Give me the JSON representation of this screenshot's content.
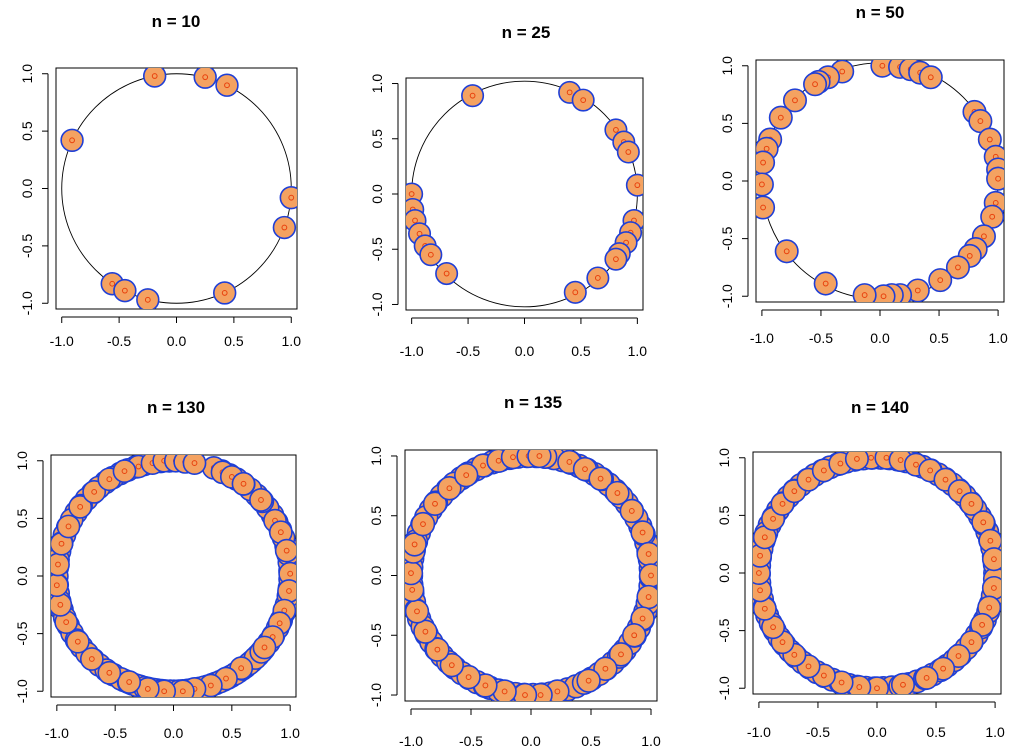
{
  "colors": {
    "point_fill": "#f4a261",
    "point_border": "#1f3fd6",
    "point_center": "#e8420e",
    "background": "#ffffff"
  },
  "chart_data": [
    {
      "type": "scatter",
      "title": "n =  10",
      "xlim": [
        -1.05,
        1.05
      ],
      "ylim": [
        -1.05,
        1.05
      ],
      "xticks": [
        "-1.0",
        "-0.5",
        "0.0",
        "0.5",
        "1.0"
      ],
      "yticks": [
        "-1.0",
        "-0.5",
        "0.0",
        "0.5",
        "1.0"
      ],
      "reference": "unit circle",
      "points": [
        [
          -0.19,
          0.98
        ],
        [
          0.25,
          0.97
        ],
        [
          0.44,
          0.9
        ],
        [
          -0.91,
          0.42
        ],
        [
          1.0,
          -0.08
        ],
        [
          0.94,
          -0.34
        ],
        [
          0.42,
          -0.91
        ],
        [
          -0.56,
          -0.83
        ],
        [
          -0.45,
          -0.89
        ],
        [
          -0.25,
          -0.97
        ]
      ]
    },
    {
      "type": "scatter",
      "title": "n =  25",
      "xlim": [
        -1.05,
        1.05
      ],
      "ylim": [
        -1.05,
        1.05
      ],
      "xticks": [
        "-1.0",
        "-0.5",
        "0.0",
        "0.5",
        "1.0"
      ],
      "yticks": [
        "-1.0",
        "-0.5",
        "0.0",
        "0.5",
        "1.0"
      ],
      "reference": "unit circle",
      "points": [
        [
          -0.46,
          0.89
        ],
        [
          0.4,
          0.92
        ],
        [
          0.52,
          0.85
        ],
        [
          0.81,
          0.58
        ],
        [
          0.88,
          0.47
        ],
        [
          0.92,
          0.38
        ],
        [
          1.0,
          0.08
        ],
        [
          0.97,
          -0.24
        ],
        [
          0.94,
          -0.35
        ],
        [
          0.9,
          -0.44
        ],
        [
          0.84,
          -0.54
        ],
        [
          0.81,
          -0.59
        ],
        [
          0.65,
          -0.76
        ],
        [
          0.45,
          -0.89
        ],
        [
          -1.0,
          0.0
        ],
        [
          -0.99,
          -0.14
        ],
        [
          -0.97,
          -0.24
        ],
        [
          -0.93,
          -0.36
        ],
        [
          -0.88,
          -0.47
        ],
        [
          -0.83,
          -0.55
        ],
        [
          -0.69,
          -0.72
        ]
      ]
    },
    {
      "type": "scatter",
      "title": "n =  50",
      "xlim": [
        -1.05,
        1.05
      ],
      "ylim": [
        -1.05,
        1.05
      ],
      "xticks": [
        "-1.0",
        "-0.5",
        "0.0",
        "0.5",
        "1.0"
      ],
      "yticks": [
        "-1.0",
        "-0.5",
        "0.0",
        "0.5",
        "1.0"
      ],
      "reference": "unit circle",
      "points": [
        [
          0.02,
          1.0
        ],
        [
          0.17,
          0.99
        ],
        [
          0.26,
          0.97
        ],
        [
          0.34,
          0.94
        ],
        [
          0.43,
          0.9
        ],
        [
          -0.32,
          0.95
        ],
        [
          -0.44,
          0.9
        ],
        [
          -0.52,
          0.86
        ],
        [
          -0.55,
          0.84
        ],
        [
          -0.72,
          0.7
        ],
        [
          -0.84,
          0.55
        ],
        [
          -0.93,
          0.36
        ],
        [
          -0.96,
          0.28
        ],
        [
          -0.99,
          0.16
        ],
        [
          -1.0,
          -0.03
        ],
        [
          -0.99,
          -0.23
        ],
        [
          0.8,
          0.6
        ],
        [
          0.85,
          0.52
        ],
        [
          0.93,
          0.36
        ],
        [
          0.98,
          0.21
        ],
        [
          1.0,
          0.1
        ],
        [
          1.0,
          0.02
        ],
        [
          0.98,
          -0.19
        ],
        [
          0.95,
          -0.31
        ],
        [
          0.88,
          -0.48
        ],
        [
          0.81,
          -0.59
        ],
        [
          0.76,
          -0.65
        ],
        [
          0.66,
          -0.75
        ],
        [
          0.51,
          -0.86
        ],
        [
          0.32,
          -0.95
        ],
        [
          0.17,
          -0.99
        ],
        [
          0.1,
          -0.99
        ],
        [
          0.03,
          -1.0
        ],
        [
          -0.13,
          -0.99
        ],
        [
          -0.46,
          -0.89
        ],
        [
          -0.79,
          -0.61
        ]
      ]
    },
    {
      "type": "scatter",
      "title": "n =  130",
      "xlim": [
        -1.05,
        1.05
      ],
      "ylim": [
        -1.05,
        1.05
      ],
      "xticks": [
        "-1.0",
        "-0.5",
        "0.0",
        "0.5",
        "1.0"
      ],
      "yticks": [
        "-1.0",
        "-0.5",
        "0.0",
        "0.5",
        "1.0"
      ],
      "reference": "unit circle",
      "dense_arc_deg": [
        [
          -115,
          70
        ],
        [
          92,
          320
        ]
      ],
      "points": [
        [
          -0.3,
          0.95
        ],
        [
          -0.18,
          0.98
        ],
        [
          -0.08,
          1.0
        ],
        [
          0.02,
          1.0
        ],
        [
          0.1,
          0.99
        ],
        [
          0.18,
          0.98
        ],
        [
          0.42,
          0.9
        ],
        [
          0.5,
          0.86
        ],
        [
          0.6,
          0.8
        ],
        [
          0.75,
          0.66
        ],
        [
          0.87,
          0.48
        ],
        [
          0.92,
          0.38
        ],
        [
          0.97,
          0.22
        ],
        [
          1.0,
          0.02
        ],
        [
          0.99,
          -0.13
        ],
        [
          0.95,
          -0.3
        ],
        [
          0.91,
          -0.41
        ],
        [
          0.85,
          -0.53
        ],
        [
          0.78,
          -0.62
        ],
        [
          0.58,
          -0.8
        ],
        [
          0.45,
          -0.89
        ],
        [
          0.32,
          -0.95
        ],
        [
          0.18,
          -0.98
        ],
        [
          0.08,
          -1.0
        ],
        [
          -0.08,
          -1.0
        ],
        [
          -0.22,
          -0.98
        ],
        [
          -0.38,
          -0.92
        ],
        [
          -0.55,
          -0.84
        ],
        [
          -0.7,
          -0.72
        ],
        [
          -0.82,
          -0.57
        ],
        [
          -0.92,
          -0.4
        ],
        [
          -0.97,
          -0.25
        ],
        [
          -1.0,
          -0.08
        ],
        [
          -0.99,
          0.1
        ],
        [
          -0.96,
          0.28
        ],
        [
          -0.9,
          0.43
        ],
        [
          -0.8,
          0.6
        ],
        [
          -0.68,
          0.73
        ],
        [
          -0.55,
          0.84
        ],
        [
          -0.42,
          0.91
        ]
      ]
    },
    {
      "type": "scatter",
      "title": "n =  135",
      "xlim": [
        -1.05,
        1.05
      ],
      "ylim": [
        -1.05,
        1.05
      ],
      "xticks": [
        "-1.0",
        "-0.5",
        "0.0",
        "0.5",
        "1.0"
      ],
      "yticks": [
        "-1.0",
        "-0.5",
        "0.0",
        "0.5",
        "1.0"
      ],
      "reference": "unit circle",
      "dense_arc_deg": [
        [
          -110,
          88
        ],
        [
          92,
          250
        ]
      ],
      "points": [
        [
          -0.4,
          0.92
        ],
        [
          -0.27,
          0.96
        ],
        [
          -0.15,
          0.99
        ],
        [
          -0.02,
          1.0
        ],
        [
          0.07,
          1.0
        ],
        [
          0.32,
          0.95
        ],
        [
          0.45,
          0.89
        ],
        [
          0.58,
          0.81
        ],
        [
          0.72,
          0.69
        ],
        [
          0.84,
          0.54
        ],
        [
          0.93,
          0.36
        ],
        [
          0.98,
          0.18
        ],
        [
          1.0,
          0.0
        ],
        [
          0.98,
          -0.18
        ],
        [
          0.93,
          -0.36
        ],
        [
          0.86,
          -0.5
        ],
        [
          0.75,
          -0.66
        ],
        [
          0.62,
          -0.78
        ],
        [
          0.48,
          -0.88
        ],
        [
          0.22,
          -0.97
        ],
        [
          0.08,
          -1.0
        ],
        [
          -0.05,
          -1.0
        ],
        [
          -0.22,
          -0.97
        ],
        [
          -0.38,
          -0.92
        ],
        [
          -0.52,
          -0.85
        ],
        [
          -0.66,
          -0.75
        ],
        [
          -0.78,
          -0.62
        ],
        [
          -0.88,
          -0.47
        ],
        [
          -0.95,
          -0.3
        ],
        [
          -0.99,
          -0.12
        ],
        [
          -1.0,
          0.02
        ],
        [
          -0.98,
          0.2
        ],
        [
          -0.97,
          0.26
        ],
        [
          -0.9,
          0.43
        ],
        [
          -0.8,
          0.6
        ],
        [
          -0.68,
          0.73
        ],
        [
          -0.54,
          0.84
        ]
      ]
    },
    {
      "type": "scatter",
      "title": "n =  140",
      "xlim": [
        -1.05,
        1.05
      ],
      "ylim": [
        -1.05,
        1.05
      ],
      "xticks": [
        "-1.0",
        "-0.5",
        "0.0",
        "0.5",
        "1.0"
      ],
      "yticks": [
        "-1.0",
        "-0.5",
        "0.0",
        "0.5",
        "1.0"
      ],
      "reference": "unit circle",
      "dense_arc_deg": [
        [
          0,
          360
        ]
      ],
      "points": [
        [
          -0.05,
          1.0
        ],
        [
          0.08,
          1.0
        ],
        [
          0.2,
          0.98
        ],
        [
          0.33,
          0.94
        ],
        [
          0.45,
          0.89
        ],
        [
          0.58,
          0.81
        ],
        [
          0.7,
          0.71
        ],
        [
          0.8,
          0.6
        ],
        [
          0.9,
          0.44
        ],
        [
          0.96,
          0.28
        ],
        [
          0.99,
          0.12
        ],
        [
          0.99,
          -0.13
        ],
        [
          0.95,
          -0.3
        ],
        [
          0.89,
          -0.45
        ],
        [
          0.8,
          -0.6
        ],
        [
          0.69,
          -0.72
        ],
        [
          0.56,
          -0.83
        ],
        [
          0.42,
          -0.91
        ],
        [
          0.22,
          -0.97
        ],
        [
          0.0,
          -1.0
        ],
        [
          -0.15,
          -0.99
        ],
        [
          -0.3,
          -0.95
        ],
        [
          -0.45,
          -0.89
        ],
        [
          -0.58,
          -0.81
        ],
        [
          -0.7,
          -0.71
        ],
        [
          -0.8,
          -0.6
        ],
        [
          -0.88,
          -0.47
        ],
        [
          -0.95,
          -0.31
        ],
        [
          -0.99,
          -0.15
        ],
        [
          -1.0,
          0.0
        ],
        [
          -0.99,
          0.15
        ],
        [
          -0.95,
          0.31
        ],
        [
          -0.88,
          0.47
        ],
        [
          -0.8,
          0.6
        ],
        [
          -0.7,
          0.71
        ],
        [
          -0.58,
          0.81
        ],
        [
          -0.45,
          0.89
        ],
        [
          -0.31,
          0.95
        ],
        [
          -0.17,
          0.99
        ]
      ]
    }
  ]
}
